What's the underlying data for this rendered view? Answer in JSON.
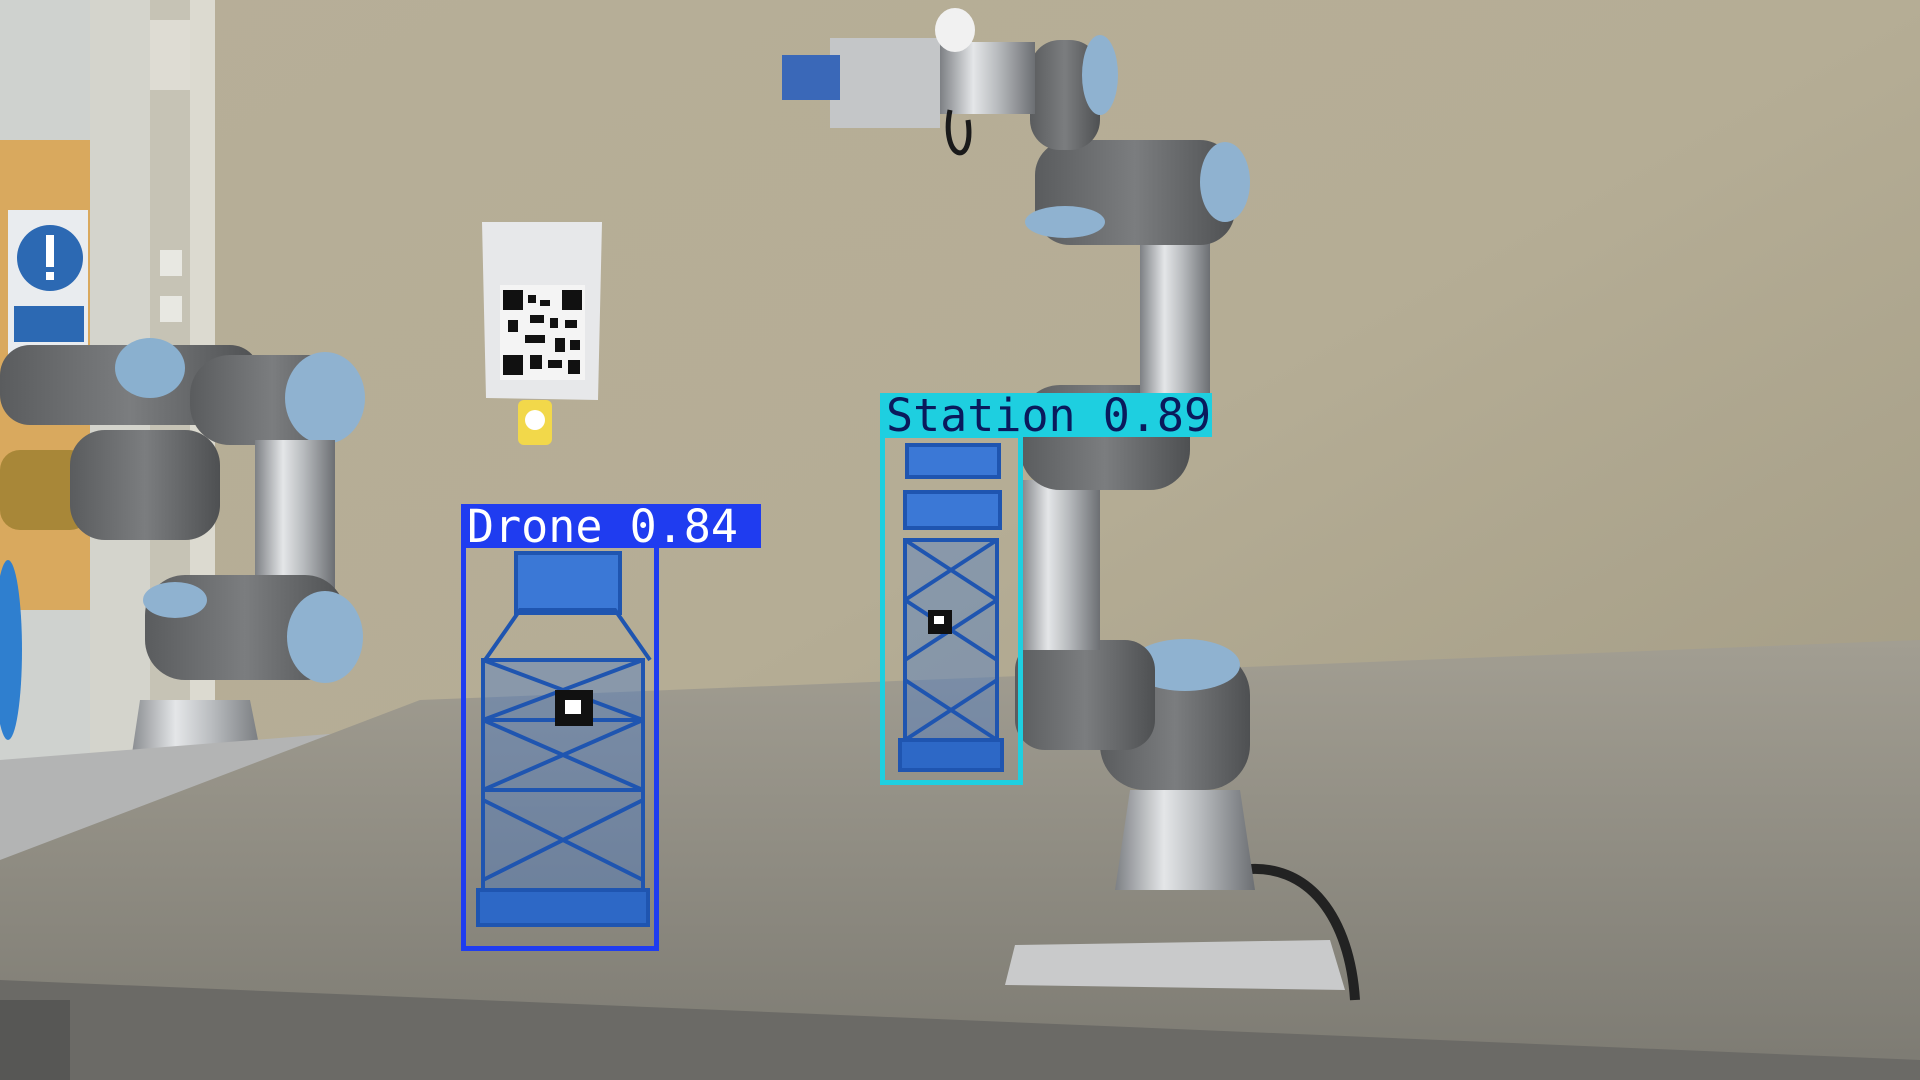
{
  "image": {
    "description_colors": {
      "wall": "#b9b199",
      "table": "#8f8c82",
      "robot_grey": "#6e7070",
      "robot_blue_cap": "#8eb0cc",
      "model_blue": "#2f6fd0"
    }
  },
  "detections": [
    {
      "label": "Drone",
      "score": "0.84",
      "box_color": "#1f3cf0",
      "label_bg": "#1f3cf0",
      "label_fg": "#ffffff"
    },
    {
      "label": "Station",
      "score": "0.89",
      "box_color": "#1ecfe0",
      "label_bg": "#1ecfe0",
      "label_fg": "#0a1a5c"
    }
  ]
}
